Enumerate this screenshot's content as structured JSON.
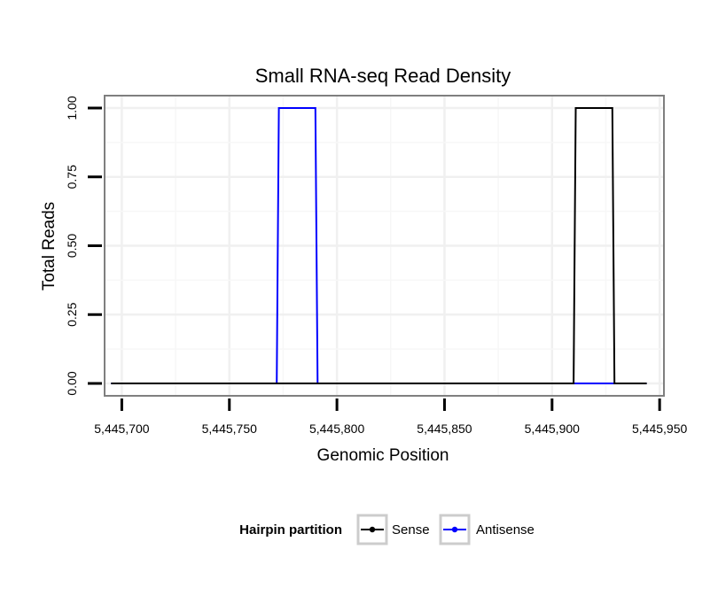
{
  "chart_data": {
    "type": "line",
    "title": "Small RNA-seq Read Density",
    "xlabel": "Genomic Position",
    "ylabel": "Total Reads",
    "xlim": [
      5445692,
      5445952
    ],
    "ylim": [
      -0.045,
      1.045
    ],
    "x_ticks": [
      5445700,
      5445750,
      5445800,
      5445850,
      5445900,
      5445950
    ],
    "x_tick_labels": [
      "5,445,700",
      "5,445,750",
      "5,445,800",
      "5,445,850",
      "5,445,900",
      "5,445,950"
    ],
    "y_ticks": [
      0,
      0.25,
      0.5,
      0.75,
      1
    ],
    "y_tick_labels": [
      "0.00",
      "0.25",
      "0.50",
      "0.75",
      "1.00"
    ],
    "grid": true,
    "legend": {
      "title": "Hairpin partition",
      "position": "bottom"
    },
    "series": [
      {
        "name": "Sense",
        "color": "#000000",
        "x": [
          5445695,
          5445910,
          5445911,
          5445928,
          5445929,
          5445944
        ],
        "y": [
          0,
          0,
          1,
          1,
          0,
          0
        ]
      },
      {
        "name": "Antisense",
        "color": "#0000ff",
        "x": [
          5445695,
          5445772,
          5445773,
          5445790,
          5445791,
          5445944
        ],
        "y": [
          0,
          0,
          1,
          1,
          0,
          0
        ]
      }
    ]
  }
}
